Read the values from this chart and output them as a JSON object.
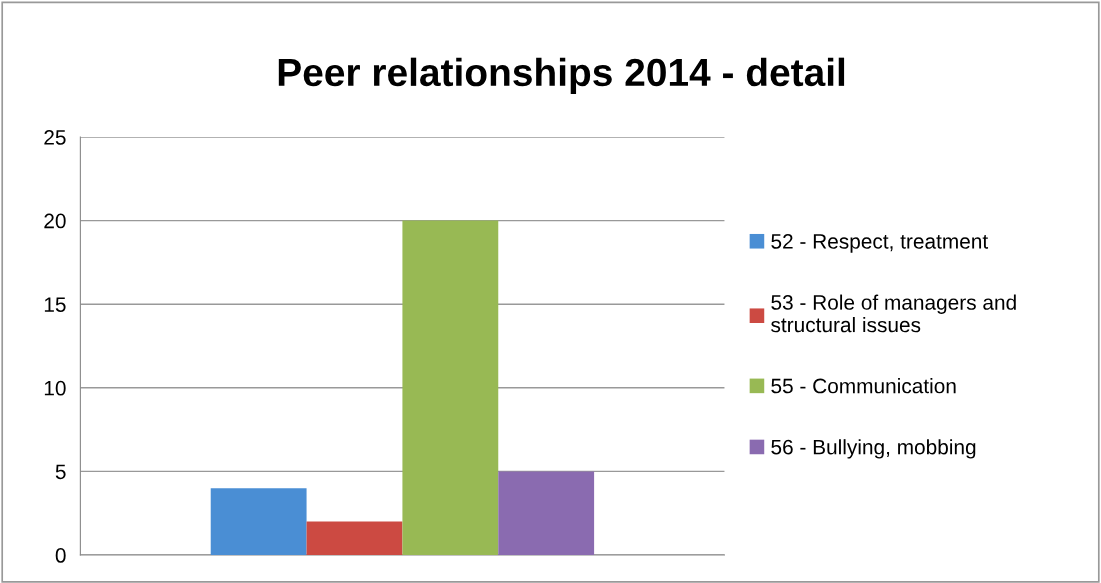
{
  "chart_data": {
    "type": "bar",
    "title": "Peer relationships 2014 - detail",
    "categories": [
      null
    ],
    "series": [
      {
        "name": "52 - Respect, treatment",
        "color": "#4a8ed4",
        "values": [
          4
        ]
      },
      {
        "name": "53 - Role of managers and structural issues",
        "color": "#cc4a42",
        "values": [
          2
        ]
      },
      {
        "name": "55 - Communication",
        "color": "#98b954",
        "values": [
          20
        ]
      },
      {
        "name": "56 - Bullying, mobbing",
        "color": "#8a6bb0",
        "values": [
          5
        ]
      }
    ],
    "ylim": [
      0,
      25
    ],
    "yticks": [
      0,
      5,
      10,
      15,
      20,
      25
    ],
    "grid": "y",
    "legend": "right",
    "tick_labels": "y"
  }
}
